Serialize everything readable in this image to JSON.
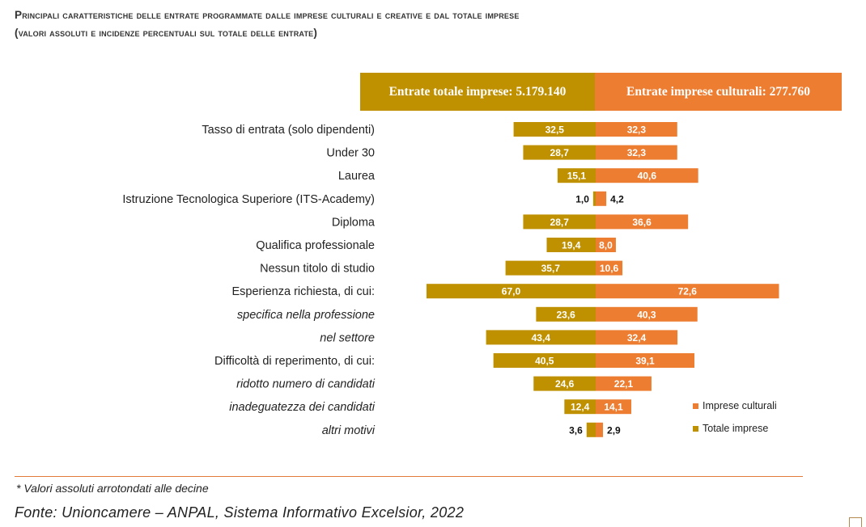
{
  "title_line1": "Principali caratteristiche delle entrate programmate dalle imprese culturali e creative e dal totale imprese",
  "title_line2": "(valori assoluti e incidenze percentuali sul totale delle entrate)",
  "header_total": "Entrate totale imprese: 5.179.140",
  "header_cultural": "Entrate imprese culturali: 277.760",
  "colors": {
    "totale": "#bf9000",
    "culturali": "#ed7d31"
  },
  "legend": {
    "culturali": "Imprese culturali",
    "totale": "Totale imprese"
  },
  "note": "* Valori assoluti arrotondati alle decine",
  "source": "Fonte: Unioncamere – ANPAL, Sistema Informativo Excelsior, 2022",
  "chart_data": {
    "type": "bar",
    "orientation": "horizontal-diverging",
    "categories": [
      "Tasso di entrata (solo dipendenti)",
      "Under 30",
      "Laurea",
      "Istruzione Tecnologica Superiore (ITS-Academy)",
      "Diploma",
      "Qualifica professionale",
      "Nessun titolo di studio",
      "Esperienza richiesta, di cui:",
      "specifica nella professione",
      "nel settore",
      "Difficoltà di reperimento, di cui:",
      "ridotto numero di candidati",
      "inadeguatezza dei candidati",
      "altri motivi"
    ],
    "italic": [
      false,
      false,
      false,
      false,
      false,
      false,
      false,
      false,
      true,
      true,
      false,
      true,
      true,
      true
    ],
    "series": [
      {
        "name": "Totale imprese",
        "side": "left",
        "values": [
          32.5,
          28.7,
          15.1,
          1.0,
          28.7,
          19.4,
          35.7,
          67.0,
          23.6,
          43.4,
          40.5,
          24.6,
          12.4,
          3.6
        ]
      },
      {
        "name": "Imprese culturali",
        "side": "right",
        "values": [
          32.3,
          32.3,
          40.6,
          4.2,
          36.6,
          8.0,
          10.6,
          72.6,
          40.3,
          32.4,
          39.1,
          22.1,
          14.1,
          2.9
        ]
      }
    ],
    "data_labels": {
      "totale": [
        "32,5",
        "28,7",
        "15,1",
        "1,0",
        "28,7",
        "19,4",
        "35,7",
        "67,0",
        "23,6",
        "43,4",
        "40,5",
        "24,6",
        "12,4",
        "3,6"
      ],
      "culturali": [
        "32,3",
        "32,3",
        "40,6",
        "4,2",
        "36,6",
        "8,0",
        "10,6",
        "72,6",
        "40,3",
        "32,4",
        "39,1",
        "22,1",
        "14,1",
        "2,9"
      ]
    },
    "legend_position": "bottom-right",
    "grid": false
  }
}
